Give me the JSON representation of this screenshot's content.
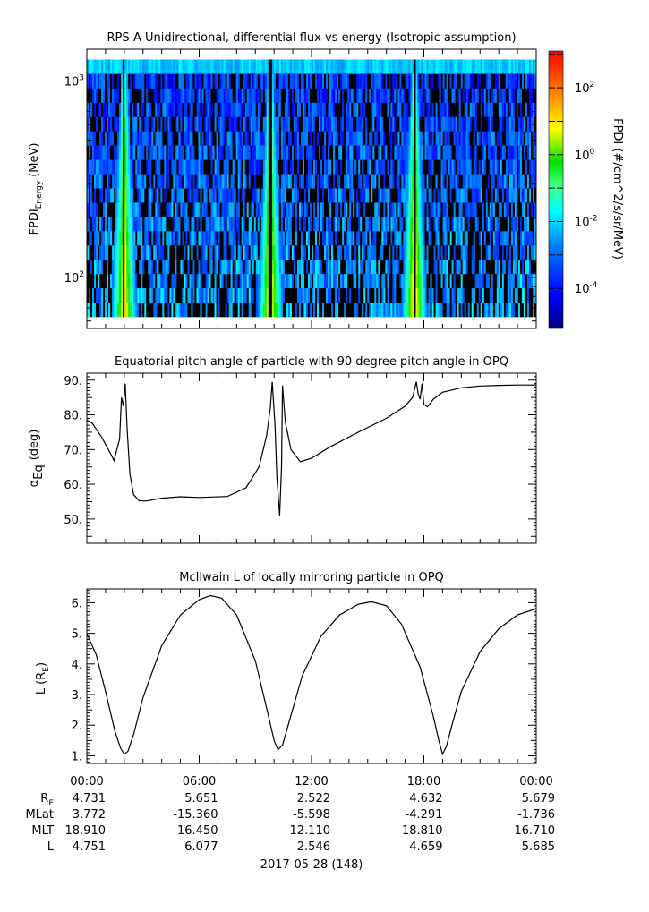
{
  "chart_data": [
    {
      "type": "heatmap",
      "title": "RPS-A Unidirectional, differential flux vs energy (Isotropic assumption)",
      "ylabel": "FPDI",
      "ylabel_sub": "Energy",
      "ylabel_unit": "(MeV)",
      "yscale": "log",
      "ylim": [
        55,
        1450
      ],
      "yticks": [
        {
          "value": 100,
          "base": "10",
          "exp": "2"
        },
        {
          "value": 1000,
          "base": "10",
          "exp": "3"
        }
      ],
      "colorbar": {
        "label": "FPDI (#/cm^2/s/sr/MeV)",
        "scale": "log",
        "range_log10": [
          -5.2,
          3.1
        ],
        "colormap": "rainbow",
        "ticks": [
          {
            "log10": 2,
            "base": "10",
            "exp": "2"
          },
          {
            "log10": 0,
            "base": "10",
            "exp": "0"
          },
          {
            "log10": -2,
            "base": "10",
            "exp": "-2"
          },
          {
            "log10": -4,
            "base": "10",
            "exp": "-4"
          }
        ]
      },
      "radiation_belt_passes_hours": [
        2.0,
        9.8,
        17.5
      ],
      "background_log10": -3.0,
      "peak_log10": 1.5,
      "fill_color": "#000000"
    },
    {
      "type": "line",
      "title": "Equatorial pitch angle of particle with 90 degree pitch angle in OPQ",
      "ylabel_symbol": "α",
      "ylabel_sub": "Eq",
      "ylabel_unit": "(deg)",
      "ylim": [
        43,
        92
      ],
      "yticks": [
        "50.",
        "60.",
        "70.",
        "80.",
        "90."
      ],
      "ytick_values": [
        50,
        60,
        70,
        80,
        90
      ],
      "x_hours": [
        0,
        0.3,
        0.8,
        1.3,
        1.45,
        1.75,
        1.85,
        1.95,
        2.05,
        2.15,
        2.3,
        2.5,
        2.8,
        3.2,
        4,
        5,
        6,
        7.5,
        8.5,
        9.2,
        9.6,
        9.8,
        9.9,
        10.05,
        10.15,
        10.3,
        10.4,
        10.45,
        10.6,
        10.9,
        11.4,
        12,
        13,
        14.5,
        16,
        17,
        17.4,
        17.6,
        17.7,
        17.8,
        17.9,
        18.0,
        18.2,
        18.5,
        19,
        20,
        21,
        22,
        23,
        24
      ],
      "y_deg": [
        78.5,
        77.5,
        73.5,
        68.5,
        66.8,
        73,
        85,
        82.5,
        89,
        76,
        63,
        57,
        55.2,
        55.2,
        56,
        56.4,
        56.2,
        56.5,
        59,
        65,
        74,
        82,
        89.5,
        77,
        62,
        51,
        65,
        88.5,
        78,
        70,
        66.5,
        67.5,
        70.8,
        75,
        79,
        82.5,
        85,
        89.5,
        86,
        84.5,
        89,
        83,
        82.3,
        84.5,
        86.5,
        87.8,
        88.3,
        88.5,
        88.6,
        88.6
      ],
      "series_color": "#000000"
    },
    {
      "type": "line",
      "title": "McIlwain L of locally mirroring particle in OPQ",
      "ylabel": "L",
      "ylabel_unit_open": "(R",
      "ylabel_unit_sub": "E",
      "ylabel_unit_close": ")",
      "ylim": [
        0.75,
        6.45
      ],
      "yticks": [
        "1.",
        "2.",
        "3.",
        "4.",
        "5.",
        "6."
      ],
      "ytick_values": [
        1,
        2,
        3,
        4,
        5,
        6
      ],
      "x_hours": [
        0,
        0.5,
        1.0,
        1.5,
        1.8,
        2.0,
        2.2,
        2.5,
        3,
        4,
        5,
        6,
        6.6,
        7.2,
        8,
        9,
        9.7,
        10.0,
        10.2,
        10.45,
        10.8,
        11.5,
        12.5,
        13.5,
        14.5,
        15.2,
        16,
        16.8,
        17.8,
        18.5,
        18.8,
        19.0,
        19.2,
        19.5,
        20,
        21,
        22,
        23,
        24
      ],
      "y": [
        4.99,
        4.3,
        3.1,
        1.8,
        1.25,
        1.05,
        1.15,
        1.7,
        2.9,
        4.6,
        5.6,
        6.1,
        6.23,
        6.15,
        5.6,
        4.1,
        2.3,
        1.5,
        1.2,
        1.35,
        2.1,
        3.6,
        4.9,
        5.6,
        5.95,
        6.03,
        5.9,
        5.3,
        3.9,
        2.3,
        1.5,
        1.05,
        1.3,
        2.0,
        3.1,
        4.4,
        5.15,
        5.6,
        5.8
      ],
      "series_color": "#000000"
    }
  ],
  "x_axis": {
    "ticks": [
      "00:00",
      "06:00",
      "12:00",
      "18:00",
      "00:00"
    ],
    "tick_hours": [
      0,
      6,
      12,
      18,
      24
    ],
    "minor_step_hours": 1,
    "date_label": "2017-05-28 (148)"
  },
  "ephemeris": {
    "rows": [
      {
        "label": "R",
        "label_sub": "E",
        "values": [
          "4.731",
          "5.651",
          "2.522",
          "4.632",
          "5.679"
        ]
      },
      {
        "label": "MLat",
        "label_sub": "",
        "values": [
          "3.772",
          "-15.360",
          "-5.598",
          "-4.291",
          "-1.736"
        ]
      },
      {
        "label": "MLT",
        "label_sub": "",
        "values": [
          "18.910",
          "16.450",
          "12.110",
          "18.810",
          "16.710"
        ]
      },
      {
        "label": "L",
        "label_sub": "",
        "values": [
          "4.751",
          "6.077",
          "2.546",
          "4.659",
          "5.685"
        ]
      }
    ]
  }
}
